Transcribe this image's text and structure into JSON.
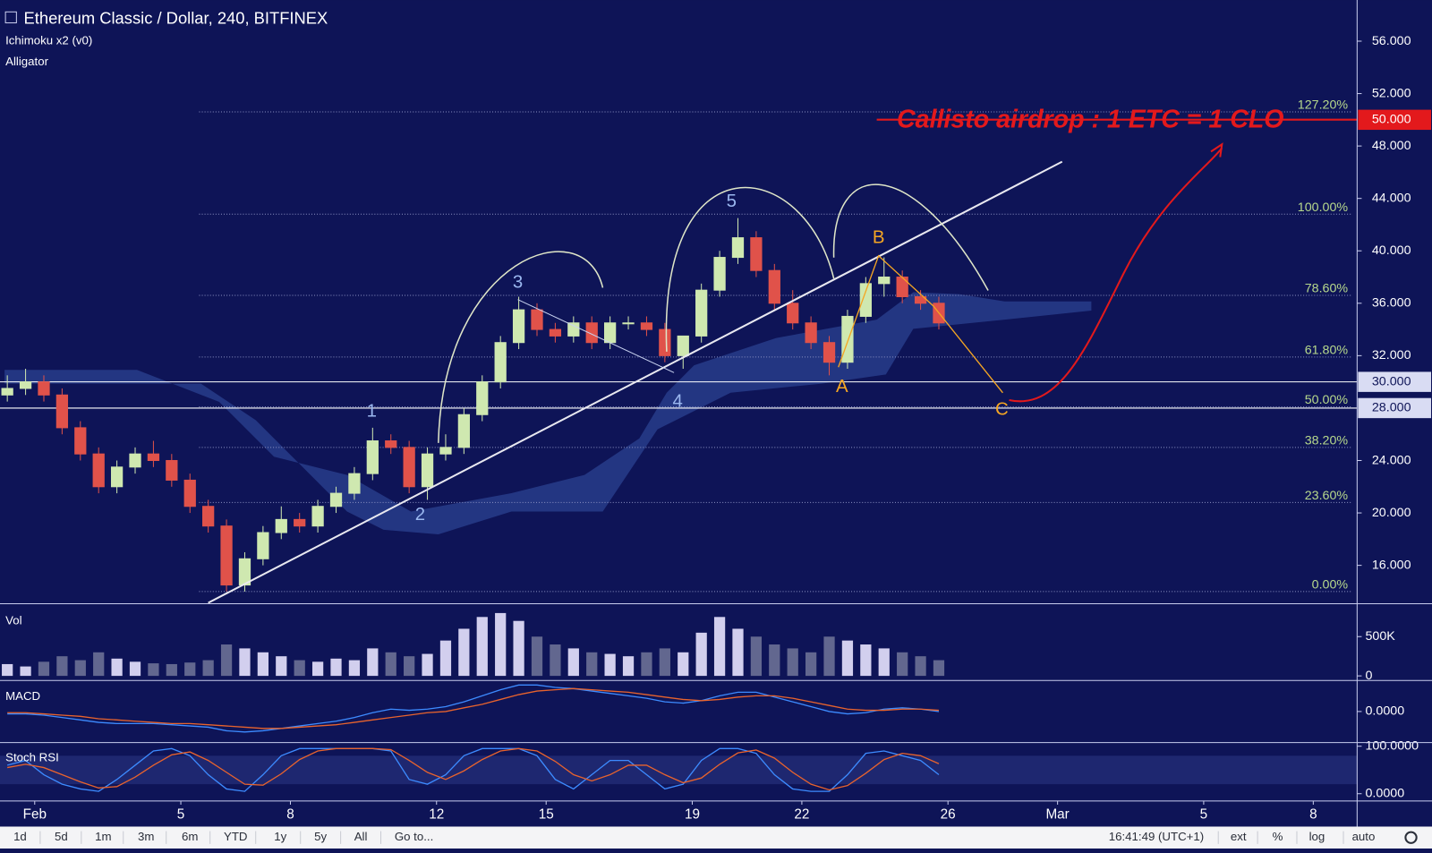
{
  "chart_data": {
    "type": "candlestick",
    "title": "Ethereum Classic / Dollar, 240, BITFINEX",
    "indicators": [
      "Ichimoku x2 (v0)",
      "Alligator"
    ],
    "up_color": "#cfe8b0",
    "down_color": "#e0524a",
    "x": [
      -0.75,
      -0.25,
      0.25,
      0.75,
      1.25,
      1.75,
      2.25,
      2.75,
      3.25,
      3.75,
      4.25,
      4.75,
      5.25,
      5.75,
      6.25,
      6.75,
      7.25,
      7.75,
      8.25,
      8.75,
      9.25,
      9.75,
      10.25,
      10.75,
      11.25,
      11.75,
      12.25,
      12.75,
      13.25,
      13.75,
      14.25,
      14.75,
      15.25,
      15.75,
      16.25,
      16.75,
      17.25,
      17.75,
      18.25,
      18.75,
      19.25,
      19.75,
      20.25,
      20.75,
      21.25,
      21.75,
      22.25,
      22.75,
      23.25,
      23.75,
      24.25,
      24.75
    ],
    "open": [
      29,
      29.5,
      30,
      29,
      26.5,
      24.5,
      22,
      23.5,
      24.5,
      24,
      22.5,
      20.5,
      19,
      14.5,
      16.5,
      18.5,
      19.5,
      19,
      20.5,
      21.5,
      23,
      25.5,
      25,
      22,
      24.5,
      25,
      27.5,
      30,
      33,
      35.5,
      34,
      33.5,
      34.5,
      33,
      34.5,
      34.5,
      34,
      32,
      33.5,
      37,
      39.5,
      41,
      38.5,
      36,
      34.5,
      33,
      31.5,
      35,
      37.5,
      38,
      36.5,
      36
    ],
    "high": [
      30.5,
      31,
      30.5,
      29.5,
      27,
      25,
      24,
      25,
      25.5,
      24.5,
      23,
      21,
      19.5,
      17,
      19,
      20.5,
      20,
      21,
      22,
      23.5,
      26.5,
      26,
      25.5,
      25,
      26,
      28,
      30.5,
      33.5,
      36.5,
      36,
      34.5,
      35,
      35,
      35,
      35,
      35,
      34.5,
      33.5,
      37.5,
      40,
      42.5,
      41.5,
      39,
      37,
      35,
      33.5,
      35.5,
      38,
      39.5,
      38.5,
      37,
      36.5
    ],
    "low": [
      28.5,
      29,
      28.5,
      26,
      24,
      21.5,
      21.5,
      23,
      23.5,
      22,
      20,
      18.5,
      14,
      14,
      16,
      18,
      18.5,
      18.5,
      20,
      21,
      22.5,
      24.5,
      21.5,
      21,
      24,
      24.5,
      27,
      29.5,
      32.5,
      33.5,
      33,
      33,
      32.5,
      32.5,
      34,
      33.5,
      31.5,
      31,
      33,
      36.5,
      39,
      38,
      35.5,
      34,
      32.5,
      30.5,
      31,
      34.5,
      36.5,
      36,
      35.5,
      34
    ],
    "close": [
      29.5,
      30,
      29,
      26.5,
      24.5,
      22,
      23.5,
      24.5,
      24,
      22.5,
      20.5,
      19,
      14.5,
      16.5,
      18.5,
      19.5,
      19,
      20.5,
      21.5,
      23,
      25.5,
      25,
      22,
      24.5,
      25,
      27.5,
      30,
      33,
      35.5,
      34,
      33.5,
      34.5,
      33,
      34.5,
      34.5,
      34,
      32,
      33.5,
      37,
      39.5,
      41,
      38.5,
      36,
      34.5,
      33,
      31.5,
      35,
      37.5,
      38,
      36.5,
      36,
      34.5
    ],
    "xlim": [
      -0.95,
      36.2
    ],
    "xticks": [
      {
        "value": 0,
        "label": "Feb"
      },
      {
        "value": 4,
        "label": "5"
      },
      {
        "value": 7,
        "label": "8"
      },
      {
        "value": 11,
        "label": "12"
      },
      {
        "value": 14,
        "label": "15"
      },
      {
        "value": 18,
        "label": "19"
      },
      {
        "value": 21,
        "label": "22"
      },
      {
        "value": 25,
        "label": "26"
      },
      {
        "value": 28,
        "label": "Mar"
      },
      {
        "value": 32,
        "label": "5"
      },
      {
        "value": 35,
        "label": "8"
      }
    ],
    "ylim": [
      13.14,
      59.14
    ],
    "yticks": [
      {
        "value": 56,
        "label": "56.000"
      },
      {
        "value": 52,
        "label": "52.000"
      },
      {
        "value": 48,
        "label": "48.000"
      },
      {
        "value": 44,
        "label": "44.000"
      },
      {
        "value": 40,
        "label": "40.000"
      },
      {
        "value": 36,
        "label": "36.000"
      },
      {
        "value": 32,
        "label": "32.000"
      },
      {
        "value": 24,
        "label": "24.000"
      },
      {
        "value": 20,
        "label": "20.000"
      },
      {
        "value": 16,
        "label": "16.000"
      }
    ],
    "fib_levels": [
      {
        "label": "127.20%",
        "value": 50.6
      },
      {
        "label": "100.00%",
        "value": 42.8
      },
      {
        "label": "78.60%",
        "value": 36.6
      },
      {
        "label": "61.80%",
        "value": 31.9
      },
      {
        "label": "50.00%",
        "value": 28.1
      },
      {
        "label": "38.20%",
        "value": 25.0
      },
      {
        "label": "23.60%",
        "value": 20.8
      },
      {
        "label": "0.00%",
        "value": 14.0
      }
    ],
    "price_lines": [
      {
        "value": 50,
        "label": "50.000",
        "color": "#e3191c"
      },
      {
        "value": 30,
        "label": "30.000",
        "color": "#d9dcf3"
      },
      {
        "value": 28,
        "label": "28.000",
        "color": "#d9dcf3"
      }
    ],
    "annotation": "Callisto airdrop :  1 ETC = 1 CLO",
    "wave_labels": [
      "1",
      "2",
      "3",
      "4",
      "5",
      "A",
      "B",
      "C"
    ],
    "volume": {
      "label": "Vol",
      "values": [
        150000,
        120000,
        180000,
        250000,
        200000,
        300000,
        220000,
        180000,
        160000,
        150000,
        170000,
        200000,
        400000,
        350000,
        300000,
        250000,
        200000,
        180000,
        220000,
        200000,
        350000,
        300000,
        250000,
        280000,
        450000,
        600000,
        750000,
        800000,
        700000,
        500000,
        400000,
        350000,
        300000,
        280000,
        250000,
        300000,
        350000,
        300000,
        550000,
        750000,
        600000,
        500000,
        400000,
        350000,
        300000,
        500000,
        450000,
        400000,
        350000,
        300000,
        250000,
        200000
      ],
      "ylim": [
        -46500,
        907000
      ],
      "yticks": [
        0,
        {
          "value": 500000,
          "label": "500K"
        }
      ]
    },
    "macd": {
      "label": "MACD",
      "ylim": [
        -2.5,
        2.5
      ],
      "yticks": [
        {
          "value": 0,
          "label": "0.0000"
        }
      ],
      "series": [
        {
          "color": "#3d8bff",
          "values": [
            -0.2,
            -0.2,
            -0.3,
            -0.5,
            -0.7,
            -0.9,
            -1.0,
            -1.0,
            -1.0,
            -1.1,
            -1.2,
            -1.3,
            -1.6,
            -1.7,
            -1.6,
            -1.4,
            -1.2,
            -1.0,
            -0.8,
            -0.5,
            -0.1,
            0.2,
            0.1,
            0.2,
            0.4,
            0.8,
            1.3,
            1.8,
            2.2,
            2.2,
            2.0,
            1.9,
            1.7,
            1.5,
            1.3,
            1.1,
            0.8,
            0.7,
            0.9,
            1.3,
            1.6,
            1.6,
            1.2,
            0.8,
            0.4,
            0.0,
            -0.2,
            -0.1,
            0.2,
            0.3,
            0.2,
            0.0
          ]
        },
        {
          "color": "#e8632d",
          "values": [
            -0.1,
            -0.1,
            -0.2,
            -0.3,
            -0.4,
            -0.6,
            -0.7,
            -0.8,
            -0.9,
            -1.0,
            -1.0,
            -1.1,
            -1.2,
            -1.3,
            -1.4,
            -1.4,
            -1.3,
            -1.2,
            -1.1,
            -0.9,
            -0.7,
            -0.5,
            -0.3,
            -0.1,
            0.0,
            0.3,
            0.6,
            1.0,
            1.4,
            1.7,
            1.8,
            1.9,
            1.8,
            1.7,
            1.6,
            1.4,
            1.2,
            1.0,
            0.9,
            1.0,
            1.2,
            1.3,
            1.3,
            1.1,
            0.8,
            0.5,
            0.2,
            0.1,
            0.1,
            0.2,
            0.2,
            0.1
          ]
        }
      ]
    },
    "stoch_rsi": {
      "label": "Stoch RSI",
      "ylim": [
        -13.5,
        105.8
      ],
      "yticks": [
        {
          "value": 100,
          "label": "100.0000"
        },
        {
          "value": 0,
          "label": "0.0000"
        }
      ],
      "series": [
        {
          "color": "#3d8bff",
          "values": [
            60,
            70,
            40,
            20,
            10,
            5,
            30,
            60,
            90,
            95,
            80,
            40,
            10,
            5,
            40,
            80,
            95,
            95,
            95,
            95,
            95,
            90,
            30,
            20,
            40,
            80,
            95,
            95,
            95,
            80,
            30,
            10,
            40,
            70,
            70,
            40,
            10,
            20,
            70,
            95,
            95,
            85,
            40,
            10,
            5,
            5,
            40,
            85,
            90,
            80,
            70,
            40
          ]
        },
        {
          "color": "#e8632d",
          "values": [
            55,
            62,
            55,
            40,
            25,
            12,
            15,
            35,
            60,
            82,
            88,
            70,
            45,
            20,
            18,
            42,
            72,
            90,
            95,
            95,
            95,
            93,
            70,
            45,
            30,
            48,
            72,
            90,
            95,
            90,
            68,
            40,
            27,
            40,
            60,
            60,
            40,
            23,
            33,
            62,
            86,
            92,
            75,
            45,
            20,
            8,
            17,
            43,
            72,
            85,
            80,
            63
          ]
        }
      ]
    }
  },
  "toolbar": {
    "ranges": [
      "1d",
      "5d",
      "1m",
      "3m",
      "6m",
      "YTD",
      "1y",
      "5y",
      "All"
    ],
    "goto": "Go to...",
    "clock": "16:41:49 (UTC+1)",
    "options": [
      "ext",
      "%",
      "log",
      "auto"
    ]
  }
}
